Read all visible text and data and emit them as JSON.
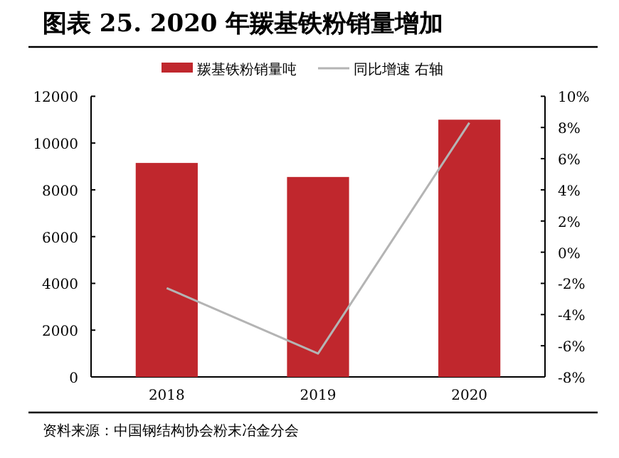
{
  "chart_data": {
    "type": "bar",
    "title": "图表 25. 2020 年羰基铁粉销量增加",
    "categories": [
      "2018",
      "2019",
      "2020"
    ],
    "series": [
      {
        "name": "羰基铁粉销量吨",
        "color": "#c0272d",
        "values": [
          9150,
          8550,
          11000
        ]
      },
      {
        "name": "同比增速 右轴",
        "type": "line",
        "axis": "y2",
        "color": "#b4b4b4",
        "values": [
          -2.3,
          -6.5,
          8.3
        ]
      }
    ],
    "ylim": [
      0,
      12000
    ],
    "yticks": [
      0,
      2000,
      4000,
      6000,
      8000,
      10000,
      12000
    ],
    "y2lim": [
      -8,
      10
    ],
    "y2ticks": [
      {
        "value": -8,
        "label": "-8%"
      },
      {
        "value": -6,
        "label": "-6%"
      },
      {
        "value": -4,
        "label": "-4%"
      },
      {
        "value": -2,
        "label": "-2%"
      },
      {
        "value": 0,
        "label": "0%"
      },
      {
        "value": 2,
        "label": "2%"
      },
      {
        "value": 4,
        "label": "4%"
      },
      {
        "value": 6,
        "label": "6%"
      },
      {
        "value": 8,
        "label": "8%"
      },
      {
        "value": 10,
        "label": "10%"
      }
    ],
    "legend": "top",
    "marker": "none",
    "line_style": "solid",
    "annotations": [
      "资料来源：中国钢结构协会粉末冶金分会"
    ]
  }
}
